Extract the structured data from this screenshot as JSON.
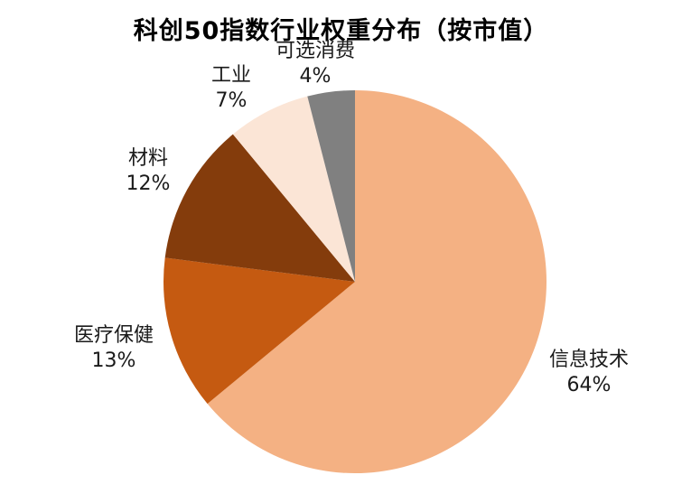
{
  "chart_data": {
    "type": "pie",
    "title": "科创50指数行业权重分布（按市值）",
    "slices": [
      {
        "label": "信息技术",
        "value": 64,
        "pct_label": "64%",
        "color": "#F4B183"
      },
      {
        "label": "医疗保健",
        "value": 13,
        "pct_label": "13%",
        "color": "#C55A11"
      },
      {
        "label": "材料",
        "value": 12,
        "pct_label": "12%",
        "color": "#843C0C"
      },
      {
        "label": "工业",
        "value": 7,
        "pct_label": "7%",
        "color": "#FBE5D6"
      },
      {
        "label": "可选消费",
        "value": 4,
        "pct_label": "4%",
        "color": "#808080"
      }
    ],
    "start": "12 o'clock",
    "direction": "clockwise",
    "legend": "none"
  }
}
